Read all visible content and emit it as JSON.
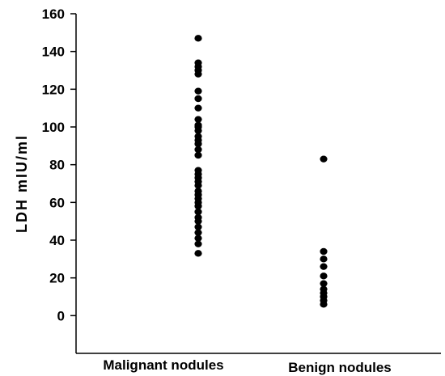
{
  "chart_data": {
    "type": "scatter",
    "title": "",
    "xlabel": "",
    "ylabel": "LDH mIU/ml",
    "categories": [
      "Malignant nodules",
      "Benign nodules"
    ],
    "ylim": [
      -20,
      160
    ],
    "yticks": [
      0,
      20,
      40,
      60,
      80,
      100,
      120,
      140,
      160
    ],
    "grid": false,
    "series": [
      {
        "category": "Malignant nodules",
        "values": [
          147,
          134,
          132,
          130,
          128,
          119,
          115,
          110,
          104,
          101,
          100,
          98,
          95,
          93,
          91,
          88,
          85,
          77,
          75,
          73,
          71,
          69,
          66,
          64,
          62,
          60,
          58,
          55,
          52,
          50,
          47,
          44,
          41,
          38,
          33
        ]
      },
      {
        "category": "Benign nodules",
        "values": [
          83,
          34,
          30,
          26,
          21,
          17,
          14,
          12,
          10,
          8,
          6
        ]
      }
    ],
    "colors": {
      "points": "#000000",
      "axis": "#000000"
    }
  }
}
